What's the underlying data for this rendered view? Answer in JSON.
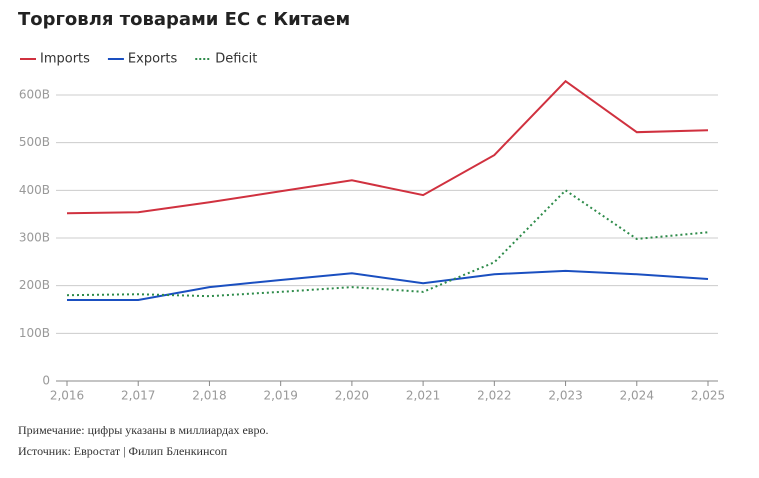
{
  "chart_data": {
    "type": "line",
    "title": "Торговля товарами ЕС с Китаем",
    "x": [
      2016,
      2017,
      2018,
      2019,
      2020,
      2021,
      2022,
      2023,
      2024,
      2025
    ],
    "series": [
      {
        "name": "Imports",
        "color": "#d0313f",
        "style": "solid",
        "values": [
          352,
          354,
          375,
          398,
          421,
          390,
          474,
          629,
          522,
          526
        ]
      },
      {
        "name": "Exports",
        "color": "#1a4fc0",
        "style": "solid",
        "values": [
          170,
          170,
          197,
          212,
          226,
          205,
          224,
          231,
          224,
          214
        ]
      },
      {
        "name": "Deficit",
        "color": "#2e8b4a",
        "style": "dotted",
        "values": [
          180,
          182,
          178,
          187,
          197,
          187,
          249,
          400,
          298,
          312
        ]
      }
    ],
    "xlim": [
      2016,
      2025
    ],
    "xticks": [
      {
        "value": 2016,
        "label": "2,016"
      },
      {
        "value": 2017,
        "label": "2,017"
      },
      {
        "value": 2018,
        "label": "2,018"
      },
      {
        "value": 2019,
        "label": "2,019"
      },
      {
        "value": 2020,
        "label": "2,020"
      },
      {
        "value": 2021,
        "label": "2,021"
      },
      {
        "value": 2022,
        "label": "2,022"
      },
      {
        "value": 2023,
        "label": "2,023"
      },
      {
        "value": 2024,
        "label": "2,024"
      },
      {
        "value": 2025,
        "label": "2,025"
      }
    ],
    "ylim": [
      0,
      600
    ],
    "yticks": [
      0,
      {
        "value": 100,
        "label": "100B"
      },
      {
        "value": 200,
        "label": "200B"
      },
      {
        "value": 300,
        "label": "300B"
      },
      {
        "value": 400,
        "label": "400B"
      },
      {
        "value": 500,
        "label": "500B"
      },
      {
        "value": 600,
        "label": "600B"
      }
    ],
    "grid": true,
    "note": "Примечание: цифры указаны в миллиардах евро.",
    "source": "Источник: Евростат | Филип Бленкинсоп"
  }
}
